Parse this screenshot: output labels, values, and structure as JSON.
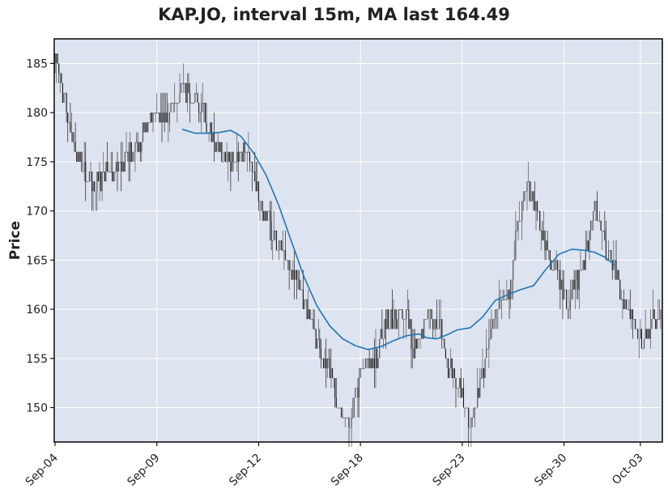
{
  "chart_data": {
    "type": "candlestick",
    "title": "KAP.JO, interval 15m, MA last 164.49",
    "xlabel": "",
    "ylabel": "Price",
    "ylim": [
      146.5,
      187.5
    ],
    "y_ticks": [
      150,
      155,
      160,
      165,
      170,
      175,
      180,
      185
    ],
    "x_tick_labels": [
      "Sep-04",
      "Sep-09",
      "Sep-12",
      "Sep-18",
      "Sep-23",
      "Sep-30",
      "Oct-03"
    ],
    "grid": true,
    "colors": {
      "background": "#dde3ef",
      "candle": "#1f1f1f",
      "ma_line": "#1f77b4",
      "grid": "#ffffff"
    },
    "price_path": [
      [
        0,
        186
      ],
      [
        8,
        181
      ],
      [
        18,
        175
      ],
      [
        30,
        173
      ],
      [
        45,
        174
      ],
      [
        60,
        176
      ],
      [
        75,
        179
      ],
      [
        90,
        180
      ],
      [
        100,
        182
      ],
      [
        110,
        181
      ],
      [
        118,
        180
      ],
      [
        124,
        177
      ],
      [
        130,
        176
      ],
      [
        138,
        175
      ],
      [
        143,
        176
      ],
      [
        150,
        176
      ],
      [
        158,
        172
      ],
      [
        166,
        169
      ],
      [
        178,
        166
      ],
      [
        190,
        163
      ],
      [
        200,
        159
      ],
      [
        208,
        156
      ],
      [
        216,
        154
      ],
      [
        224,
        150
      ],
      [
        230,
        148
      ],
      [
        238,
        152
      ],
      [
        245,
        155
      ],
      [
        252,
        155
      ],
      [
        260,
        159
      ],
      [
        268,
        159
      ],
      [
        276,
        160
      ],
      [
        282,
        156
      ],
      [
        288,
        158
      ],
      [
        295,
        160
      ],
      [
        302,
        158
      ],
      [
        310,
        154
      ],
      [
        318,
        152
      ],
      [
        326,
        148
      ],
      [
        332,
        151
      ],
      [
        338,
        155
      ],
      [
        345,
        159
      ],
      [
        352,
        161
      ],
      [
        358,
        162
      ],
      [
        364,
        169
      ],
      [
        370,
        173
      ],
      [
        376,
        171
      ],
      [
        382,
        168
      ],
      [
        388,
        166
      ],
      [
        395,
        164
      ],
      [
        402,
        160
      ],
      [
        410,
        163
      ],
      [
        418,
        166
      ],
      [
        424,
        171
      ],
      [
        432,
        166
      ],
      [
        440,
        164
      ],
      [
        446,
        161
      ],
      [
        452,
        159
      ],
      [
        458,
        158
      ],
      [
        464,
        157
      ],
      [
        470,
        159
      ],
      [
        476,
        160
      ]
    ],
    "ma": {
      "name": "MA",
      "points": [
        [
          100,
          178.3
        ],
        [
          110,
          177.9
        ],
        [
          120,
          177.9
        ],
        [
          130,
          178.0
        ],
        [
          138,
          178.2
        ],
        [
          146,
          177.6
        ],
        [
          156,
          175.9
        ],
        [
          166,
          173.6
        ],
        [
          176,
          170.5
        ],
        [
          186,
          166.8
        ],
        [
          196,
          163.2
        ],
        [
          206,
          160.3
        ],
        [
          216,
          158.3
        ],
        [
          226,
          157.0
        ],
        [
          236,
          156.3
        ],
        [
          246,
          155.9
        ],
        [
          256,
          156.2
        ],
        [
          266,
          156.8
        ],
        [
          276,
          157.3
        ],
        [
          286,
          157.5
        ],
        [
          292,
          157.1
        ],
        [
          300,
          157.0
        ],
        [
          308,
          157.4
        ],
        [
          316,
          157.9
        ],
        [
          326,
          158.1
        ],
        [
          336,
          159.2
        ],
        [
          346,
          160.9
        ],
        [
          356,
          161.5
        ],
        [
          366,
          162.0
        ],
        [
          376,
          162.4
        ],
        [
          386,
          164.1
        ],
        [
          396,
          165.6
        ],
        [
          406,
          166.1
        ],
        [
          416,
          166.0
        ],
        [
          424,
          165.8
        ],
        [
          432,
          165.3
        ],
        [
          440,
          164.5
        ]
      ]
    }
  }
}
